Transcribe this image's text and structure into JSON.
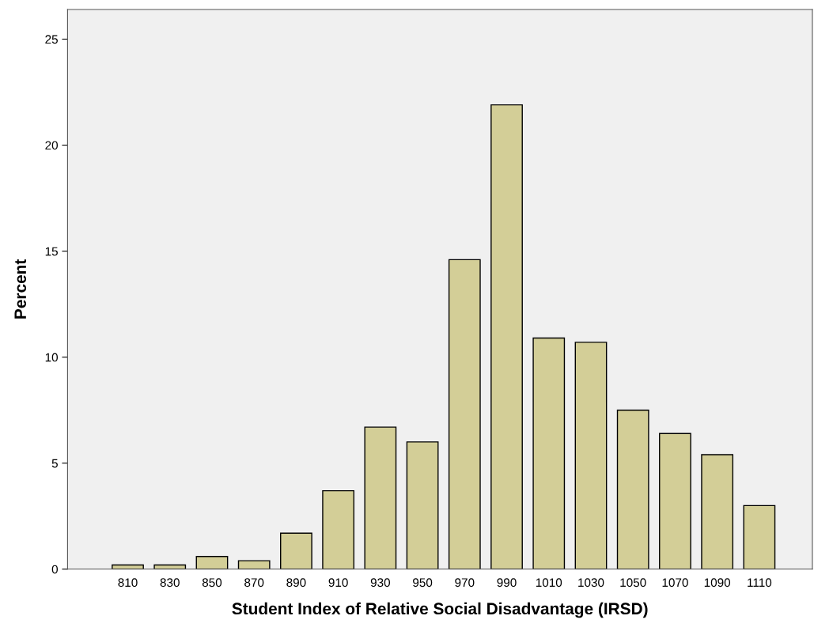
{
  "chart_data": {
    "type": "bar",
    "xlabel": "Student Index of Relative Social Disadvantage (IRSD)",
    "ylabel": "Percent",
    "categories": [
      "810",
      "830",
      "850",
      "870",
      "890",
      "910",
      "930",
      "950",
      "970",
      "990",
      "1010",
      "1030",
      "1050",
      "1070",
      "1090",
      "1110"
    ],
    "values": [
      0.2,
      0.2,
      0.6,
      0.4,
      1.7,
      3.7,
      6.7,
      6.0,
      14.6,
      21.9,
      10.9,
      10.7,
      7.5,
      6.4,
      5.4,
      3.0
    ],
    "color": "#d3ce97",
    "ylim": [
      0,
      26.4
    ],
    "yticks": [
      0,
      5,
      10,
      15,
      20,
      25
    ],
    "grid": false,
    "legend": false
  }
}
